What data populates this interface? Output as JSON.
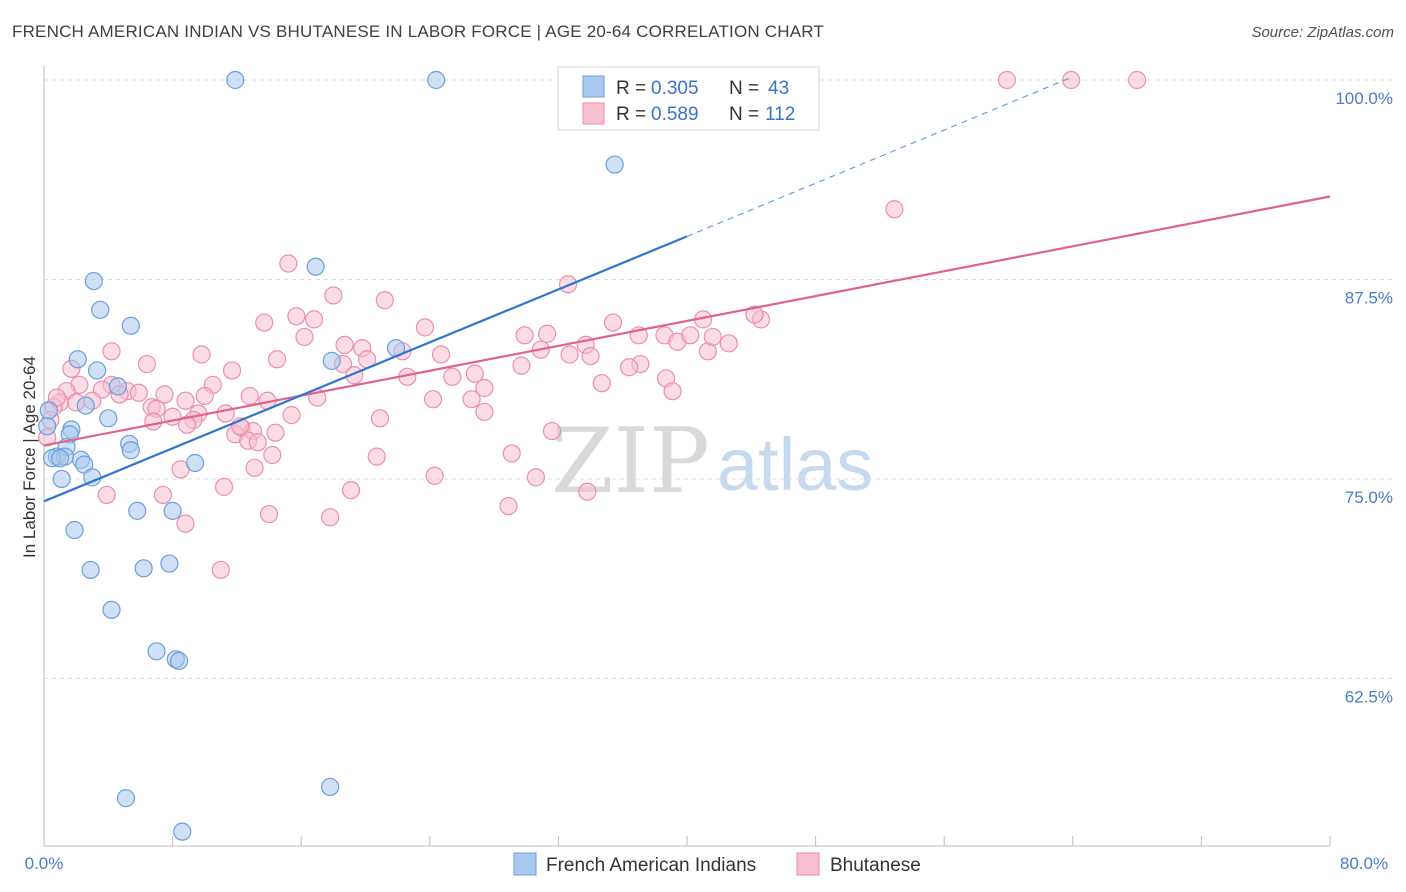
{
  "header": {
    "title": "FRENCH AMERICAN INDIAN VS BHUTANESE IN LABOR FORCE | AGE 20-64 CORRELATION CHART",
    "source": "Source: ZipAtlas.com"
  },
  "legend_box": {
    "rows": [
      {
        "r_label": "R =",
        "r_value": "0.305",
        "n_label": "N =",
        "n_value": "43"
      },
      {
        "r_label": "R =",
        "r_value": "0.589",
        "n_label": "N =",
        "n_value": "112"
      }
    ]
  },
  "bottom_legend": [
    "French American Indians",
    "Bhutanese"
  ],
  "watermark": {
    "zip": "ZIP",
    "atlas": "atlas"
  },
  "colors": {
    "blue_fill": "#a9c8ef",
    "blue_stroke": "#6a9fdb",
    "blue_line": "#2f74d0",
    "pink_fill": "#f7bfd0",
    "pink_stroke": "#ea8fae",
    "pink_line": "#e2628e",
    "grid": "#dcdcdc",
    "tick_label": "#4a7cc9"
  },
  "chart_data": {
    "type": "scatter",
    "title": "FRENCH AMERICAN INDIAN VS BHUTANESE IN LABOR FORCE | AGE 20-64 CORRELATION CHART",
    "xlabel": "",
    "ylabel": "In Labor Force | Age 20-64",
    "xlim": [
      0,
      80
    ],
    "ylim": [
      52,
      101
    ],
    "x_tick_labels": [
      "0.0%",
      "80.0%"
    ],
    "y_ticks": [
      62.5,
      75.0,
      87.5,
      100.0
    ],
    "y_tick_labels": [
      "62.5%",
      "75.0%",
      "87.5%",
      "100.0%"
    ],
    "grid": "horizontal dashed",
    "legend_placement": "top-center",
    "series": [
      {
        "name": "French American Indians",
        "r": 0.305,
        "n": 43,
        "trend": {
          "x": [
            0,
            40
          ],
          "y": [
            73.6,
            90.2
          ],
          "dashed_x": [
            40,
            64
          ],
          "dashed_y": [
            90.2,
            100.2
          ]
        },
        "points": [
          [
            11.9,
            100.0
          ],
          [
            24.4,
            100.0
          ],
          [
            35.5,
            94.7
          ],
          [
            3.1,
            87.4
          ],
          [
            16.9,
            88.3
          ],
          [
            3.5,
            85.6
          ],
          [
            5.4,
            84.6
          ],
          [
            2.1,
            82.5
          ],
          [
            3.3,
            81.8
          ],
          [
            17.9,
            82.4
          ],
          [
            21.9,
            83.2
          ],
          [
            0.3,
            79.3
          ],
          [
            2.6,
            79.6
          ],
          [
            4.6,
            80.8
          ],
          [
            4.0,
            78.8
          ],
          [
            0.2,
            78.3
          ],
          [
            1.7,
            78.1
          ],
          [
            1.6,
            77.8
          ],
          [
            5.3,
            77.2
          ],
          [
            1.4,
            77.0
          ],
          [
            5.4,
            76.8
          ],
          [
            0.8,
            76.4
          ],
          [
            1.3,
            76.4
          ],
          [
            0.5,
            76.3
          ],
          [
            1.0,
            76.3
          ],
          [
            2.3,
            76.2
          ],
          [
            2.5,
            75.9
          ],
          [
            9.4,
            76.0
          ],
          [
            1.1,
            75.0
          ],
          [
            3.0,
            75.1
          ],
          [
            5.8,
            73.0
          ],
          [
            8.0,
            73.0
          ],
          [
            1.9,
            71.8
          ],
          [
            2.9,
            69.3
          ],
          [
            6.2,
            69.4
          ],
          [
            7.8,
            69.7
          ],
          [
            4.2,
            66.8
          ],
          [
            7.0,
            64.2
          ],
          [
            8.2,
            63.7
          ],
          [
            8.4,
            63.6
          ],
          [
            5.1,
            55.0
          ],
          [
            17.8,
            55.7
          ],
          [
            8.6,
            52.9
          ]
        ]
      },
      {
        "name": "Bhutanese",
        "r": 0.589,
        "n": 112,
        "trend": {
          "x": [
            0,
            80
          ],
          "y": [
            77.1,
            92.7
          ]
        },
        "points": [
          [
            59.9,
            100.0
          ],
          [
            63.9,
            100.0
          ],
          [
            68.0,
            100.0
          ],
          [
            52.9,
            91.9
          ],
          [
            15.2,
            88.5
          ],
          [
            32.6,
            87.2
          ],
          [
            18.0,
            86.5
          ],
          [
            21.2,
            86.2
          ],
          [
            15.7,
            85.2
          ],
          [
            16.8,
            85.0
          ],
          [
            13.7,
            84.8
          ],
          [
            35.4,
            84.8
          ],
          [
            41.0,
            85.0
          ],
          [
            44.6,
            85.0
          ],
          [
            23.7,
            84.5
          ],
          [
            29.9,
            84.0
          ],
          [
            37.0,
            84.0
          ],
          [
            38.6,
            84.0
          ],
          [
            31.3,
            84.1
          ],
          [
            39.4,
            83.6
          ],
          [
            40.2,
            84.0
          ],
          [
            33.7,
            83.4
          ],
          [
            42.6,
            83.5
          ],
          [
            18.7,
            83.4
          ],
          [
            4.2,
            83.0
          ],
          [
            9.8,
            82.8
          ],
          [
            19.8,
            83.2
          ],
          [
            41.3,
            83.0
          ],
          [
            20.1,
            82.5
          ],
          [
            24.7,
            82.8
          ],
          [
            32.7,
            82.8
          ],
          [
            34.0,
            82.7
          ],
          [
            14.5,
            82.5
          ],
          [
            18.6,
            82.2
          ],
          [
            37.1,
            82.2
          ],
          [
            1.7,
            81.9
          ],
          [
            6.4,
            82.2
          ],
          [
            11.7,
            81.8
          ],
          [
            26.8,
            81.6
          ],
          [
            29.7,
            82.1
          ],
          [
            22.6,
            81.4
          ],
          [
            25.4,
            81.4
          ],
          [
            38.7,
            81.3
          ],
          [
            19.3,
            81.5
          ],
          [
            2.2,
            80.9
          ],
          [
            4.2,
            80.9
          ],
          [
            10.5,
            80.9
          ],
          [
            3.6,
            80.6
          ],
          [
            5.2,
            80.5
          ],
          [
            1.4,
            80.5
          ],
          [
            12.8,
            80.2
          ],
          [
            24.2,
            80.0
          ],
          [
            39.1,
            80.5
          ],
          [
            34.7,
            81.0
          ],
          [
            27.4,
            80.7
          ],
          [
            1.0,
            79.8
          ],
          [
            0.6,
            79.5
          ],
          [
            8.8,
            79.9
          ],
          [
            3.0,
            79.9
          ],
          [
            13.9,
            79.9
          ],
          [
            15.4,
            79.0
          ],
          [
            6.7,
            79.5
          ],
          [
            7.0,
            79.4
          ],
          [
            9.6,
            79.1
          ],
          [
            8.0,
            78.9
          ],
          [
            26.6,
            80.0
          ],
          [
            27.4,
            79.2
          ],
          [
            20.9,
            78.8
          ],
          [
            9.3,
            78.7
          ],
          [
            8.9,
            78.4
          ],
          [
            12.3,
            78.2
          ],
          [
            13.0,
            78.0
          ],
          [
            14.4,
            77.9
          ],
          [
            11.9,
            77.8
          ],
          [
            31.6,
            78.0
          ],
          [
            0.4,
            78.7
          ],
          [
            12.7,
            77.4
          ],
          [
            13.3,
            77.3
          ],
          [
            0.2,
            77.6
          ],
          [
            14.2,
            76.5
          ],
          [
            29.1,
            76.6
          ],
          [
            20.7,
            76.4
          ],
          [
            13.1,
            75.7
          ],
          [
            8.5,
            75.6
          ],
          [
            30.6,
            75.1
          ],
          [
            24.3,
            75.2
          ],
          [
            11.2,
            74.5
          ],
          [
            3.9,
            74.0
          ],
          [
            7.4,
            74.0
          ],
          [
            19.1,
            74.3
          ],
          [
            33.8,
            74.2
          ],
          [
            17.8,
            72.6
          ],
          [
            28.9,
            73.3
          ],
          [
            8.8,
            72.2
          ],
          [
            14.0,
            72.8
          ],
          [
            11.0,
            69.3
          ],
          [
            5.9,
            80.4
          ],
          [
            10.0,
            80.2
          ],
          [
            17.0,
            80.1
          ],
          [
            36.4,
            82.0
          ],
          [
            41.6,
            83.9
          ],
          [
            30.9,
            83.1
          ],
          [
            22.3,
            83.0
          ],
          [
            16.2,
            83.9
          ],
          [
            11.3,
            79.1
          ],
          [
            7.5,
            80.3
          ],
          [
            2.0,
            79.8
          ],
          [
            0.8,
            80.1
          ],
          [
            44.2,
            85.3
          ],
          [
            4.7,
            80.3
          ],
          [
            6.8,
            78.6
          ],
          [
            12.2,
            78.3
          ]
        ]
      }
    ]
  }
}
